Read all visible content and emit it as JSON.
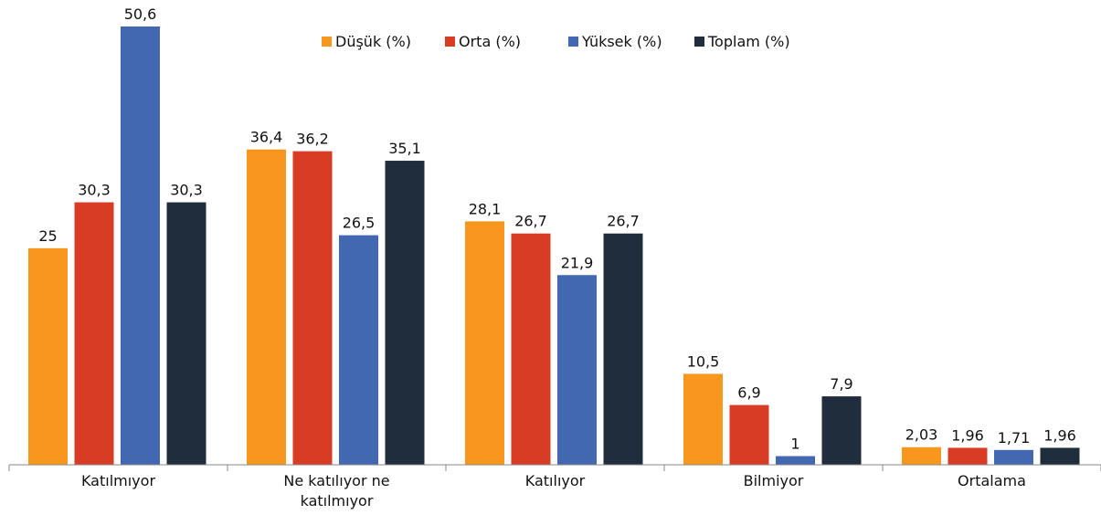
{
  "chart_data": {
    "type": "bar",
    "categories": [
      "Katılmıyor",
      "Ne katılıyor ne katılmıyor",
      "Katılıyor",
      "Bilmiyor",
      "Ortalama"
    ],
    "series": [
      {
        "name": "Düşük (%)",
        "color": "#f7971e",
        "values": [
          25,
          36.4,
          28.1,
          10.5,
          2.03
        ],
        "value_labels": [
          "25",
          "36,4",
          "28,1",
          "10,5",
          "2,03"
        ]
      },
      {
        "name": "Orta (%)",
        "color": "#d93c25",
        "values": [
          30.3,
          36.2,
          26.7,
          6.9,
          1.96
        ],
        "value_labels": [
          "30,3",
          "36,2",
          "26,7",
          "6,9",
          "1,96"
        ]
      },
      {
        "name": "Yüksek (%)",
        "color": "#4268b1",
        "values": [
          50.6,
          26.5,
          21.9,
          1,
          1.71
        ],
        "value_labels": [
          "50,6",
          "26,5",
          "21,9",
          "1",
          "1,71"
        ]
      },
      {
        "name": "Toplam (%)",
        "color": "#1f2d3d",
        "values": [
          30.3,
          35.1,
          26.7,
          7.9,
          1.96
        ],
        "value_labels": [
          "30,3",
          "35,1",
          "26,7",
          "7,9",
          "1,96"
        ]
      }
    ]
  }
}
